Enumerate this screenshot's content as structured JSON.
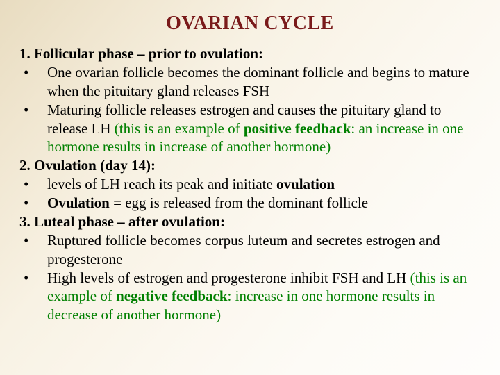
{
  "colors": {
    "title_color": "#7a1a1a",
    "body_text_color": "#000000",
    "accent_green": "#008000",
    "gradient_from": "#e8dcc0",
    "gradient_to": "#fefdfb"
  },
  "typography": {
    "title_fontsize": 28,
    "body_fontsize": 21,
    "font_family": "Times New Roman",
    "title_weight": "bold"
  },
  "title": "OVARIAN CYCLE",
  "sections": [
    {
      "heading": "1. Follicular phase – prior to ovulation:",
      "bullets": [
        {
          "text": "One ovarian follicle becomes the dominant follicle and begins to mature when the pituitary gland releases FSH"
        },
        {
          "pre": "Maturing follicle releases estrogen and causes the pituitary gland to release LH ",
          "green_pre": "(this is an example of ",
          "green_bold": "positive feedback",
          "green_post": ": an increase in one hormone results in increase of another hormone)"
        }
      ]
    },
    {
      "heading": "2. Ovulation (day 14):",
      "bullets": [
        {
          "pre": "levels of LH reach its peak and initiate ",
          "bold": "ovulation"
        },
        {
          "bold_first": "Ovulation",
          "post": " = egg is released from the dominant follicle"
        }
      ]
    },
    {
      "heading": "3. Luteal phase – after ovulation:",
      "bullets": [
        {
          "text": "Ruptured follicle becomes corpus luteum and secretes estrogen and progesterone"
        },
        {
          "pre": "High levels of estrogen and progesterone inhibit FSH and LH ",
          "green_pre": "(this is an example of ",
          "green_bold": "negative feedback",
          "green_post": ": increase in one hormone results in decrease of another hormone)"
        }
      ]
    }
  ]
}
